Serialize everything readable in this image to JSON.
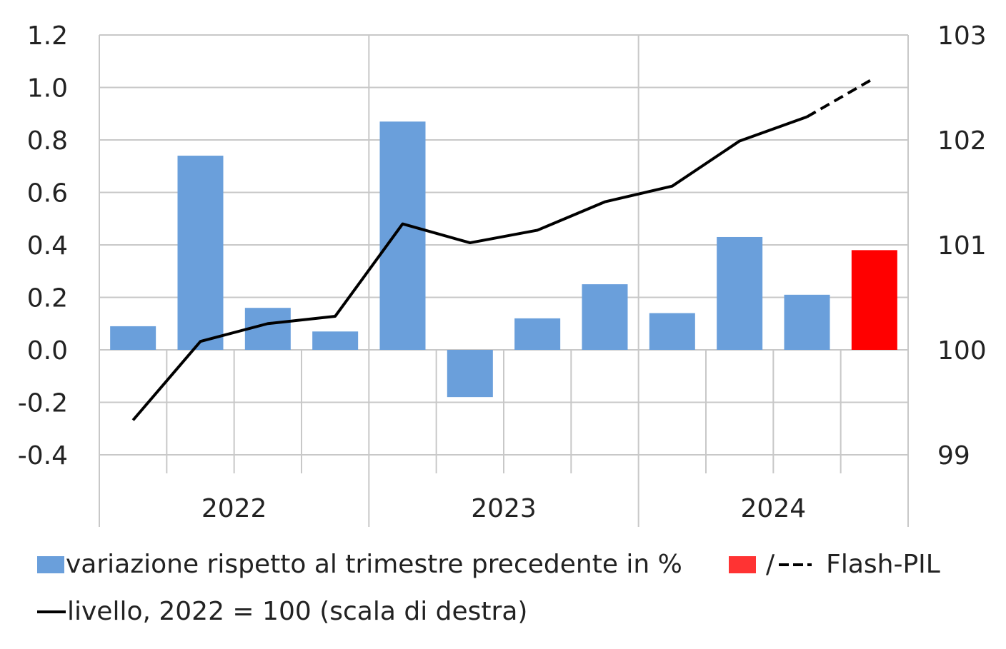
{
  "chart_data": {
    "type": "bar+line",
    "categories": [
      "2022 Q1",
      "2022 Q2",
      "2022 Q3",
      "2022 Q4",
      "2023 Q1",
      "2023 Q2",
      "2023 Q3",
      "2023 Q4",
      "2024 Q1",
      "2024 Q2",
      "2024 Q3",
      "2024 Q4"
    ],
    "year_labels": [
      "2022",
      "2023",
      "2024"
    ],
    "bars": {
      "name": "variazione rispetto al trimestre precedente in %",
      "values": [
        0.09,
        0.74,
        0.16,
        0.07,
        0.87,
        -0.18,
        0.12,
        0.25,
        0.14,
        0.43,
        0.21,
        0.38
      ],
      "flash_index": 11,
      "color": "#6a9fdb",
      "flash_color": "#ff0000"
    },
    "line": {
      "name": "livello, 2022 = 100 (scala di destra)",
      "values": [
        99.33,
        100.08,
        100.25,
        100.32,
        101.2,
        101.02,
        101.14,
        101.41,
        101.56,
        101.99,
        102.22,
        102.59
      ],
      "flash_from_index": 10,
      "color": "#000000"
    },
    "y_left": {
      "ylim": [
        -0.4,
        1.2
      ],
      "ticks": [
        "1.2",
        "1.0",
        "0.8",
        "0.6",
        "0.4",
        "0.2",
        "0.0",
        "-0.2",
        "-0.4"
      ]
    },
    "y_right": {
      "ylim": [
        99,
        103
      ],
      "ticks": [
        "103",
        "102",
        "101",
        "100",
        "99"
      ]
    },
    "grid": true,
    "legend_placement": "bottom"
  },
  "legend": {
    "bars_label": "variazione rispetto al trimestre precedente in %",
    "flash_slash": "/",
    "flash_label": "Flash-PIL",
    "line_label": "livello, 2022 = 100 (scala di destra)"
  }
}
